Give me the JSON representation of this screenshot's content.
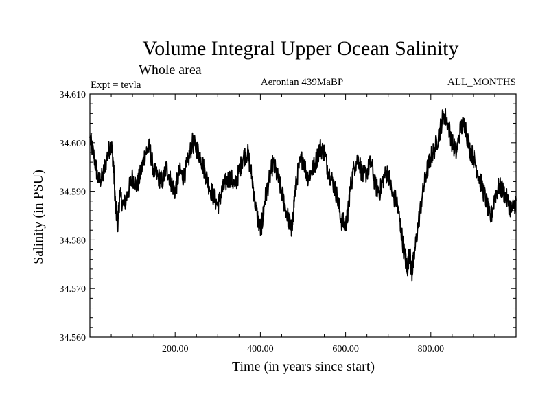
{
  "chart_data": {
    "type": "line",
    "title": "Volume Integral Upper Ocean Salinity",
    "subtitle": "Whole area",
    "annotations": {
      "left": "Expt = tevla",
      "center": "Aeronian 439MaBP",
      "right": "ALL_MONTHS"
    },
    "xlabel": "Time (in years since start)",
    "ylabel": "Salinity (in PSU)",
    "xlim": [
      0,
      1000
    ],
    "ylim": [
      34.56,
      34.61
    ],
    "x_ticks": [
      200,
      400,
      600,
      800
    ],
    "x_tick_labels": [
      "200.00",
      "400.00",
      "600.00",
      "800.00"
    ],
    "y_ticks": [
      34.56,
      34.57,
      34.58,
      34.59,
      34.6,
      34.61
    ],
    "y_tick_labels": [
      "34.560",
      "34.570",
      "34.580",
      "34.590",
      "34.600",
      "34.610"
    ],
    "series": [
      {
        "name": "salinity",
        "x": [
          0,
          10,
          20,
          30,
          40,
          50,
          55,
          60,
          65,
          70,
          80,
          90,
          100,
          110,
          120,
          130,
          140,
          150,
          160,
          170,
          180,
          190,
          200,
          210,
          220,
          230,
          240,
          250,
          260,
          270,
          280,
          290,
          300,
          310,
          320,
          330,
          340,
          350,
          360,
          370,
          380,
          390,
          400,
          405,
          410,
          420,
          430,
          440,
          450,
          460,
          470,
          475,
          480,
          490,
          500,
          510,
          520,
          530,
          540,
          550,
          560,
          570,
          580,
          590,
          600,
          605,
          610,
          620,
          630,
          640,
          650,
          660,
          670,
          680,
          690,
          700,
          710,
          720,
          730,
          740,
          745,
          750,
          755,
          760,
          770,
          780,
          790,
          800,
          810,
          820,
          830,
          840,
          850,
          860,
          870,
          880,
          890,
          900,
          910,
          920,
          930,
          940,
          950,
          960,
          970,
          980,
          990,
          1000
        ],
        "values": [
          34.601,
          34.597,
          34.592,
          34.593,
          34.597,
          34.6,
          34.596,
          34.587,
          34.583,
          34.589,
          34.587,
          34.59,
          34.593,
          34.591,
          34.594,
          34.598,
          34.599,
          34.594,
          34.593,
          34.592,
          34.595,
          34.592,
          34.59,
          34.594,
          34.593,
          34.596,
          34.6,
          34.599,
          34.597,
          34.594,
          34.591,
          34.589,
          34.587,
          34.59,
          34.592,
          34.593,
          34.591,
          34.594,
          34.597,
          34.598,
          34.593,
          34.586,
          34.582,
          34.584,
          34.588,
          34.592,
          34.596,
          34.593,
          34.59,
          34.586,
          34.583,
          34.582,
          34.589,
          34.595,
          34.597,
          34.593,
          34.594,
          34.596,
          34.599,
          34.598,
          34.594,
          34.592,
          34.589,
          34.584,
          34.583,
          34.585,
          34.59,
          34.595,
          34.597,
          34.593,
          34.594,
          34.596,
          34.591,
          34.59,
          34.593,
          34.594,
          34.589,
          34.588,
          34.582,
          34.576,
          34.574,
          34.578,
          34.573,
          34.576,
          34.583,
          34.589,
          34.594,
          34.597,
          34.599,
          34.602,
          34.606,
          34.604,
          34.6,
          34.598,
          34.603,
          34.604,
          34.599,
          34.597,
          34.594,
          34.591,
          34.588,
          34.584,
          34.589,
          34.591,
          34.59,
          34.588,
          34.586,
          34.588
        ]
      }
    ]
  }
}
